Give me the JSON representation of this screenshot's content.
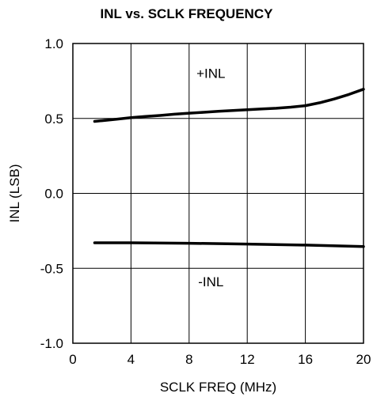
{
  "chart_data": {
    "type": "line",
    "title": "INL vs. SCLK FREQUENCY",
    "xlabel": "SCLK FREQ (MHz)",
    "ylabel": "INL (LSB)",
    "xlim": [
      0,
      20
    ],
    "ylim": [
      -1.0,
      1.0
    ],
    "x_ticks": [
      "0",
      "4",
      "8",
      "12",
      "16",
      "20"
    ],
    "y_ticks": [
      "1.0",
      "0.5",
      "0.0",
      "-0.5",
      "-1.0"
    ],
    "grid": true,
    "annotations": [
      "+INL",
      "-INL"
    ],
    "series": [
      {
        "name": "+INL",
        "x": [
          1.5,
          2,
          3,
          4,
          5,
          6,
          7,
          8,
          9,
          10,
          11,
          12,
          13,
          14,
          15,
          16,
          17,
          18,
          19,
          20
        ],
        "y": [
          0.48,
          0.485,
          0.495,
          0.505,
          0.513,
          0.52,
          0.528,
          0.535,
          0.541,
          0.547,
          0.553,
          0.558,
          0.563,
          0.568,
          0.575,
          0.585,
          0.605,
          0.63,
          0.66,
          0.695
        ]
      },
      {
        "name": "-INL",
        "x": [
          1.5,
          4,
          8,
          12,
          16,
          20
        ],
        "y": [
          -0.33,
          -0.33,
          -0.333,
          -0.338,
          -0.345,
          -0.355
        ]
      }
    ],
    "line_color": "#000000"
  }
}
